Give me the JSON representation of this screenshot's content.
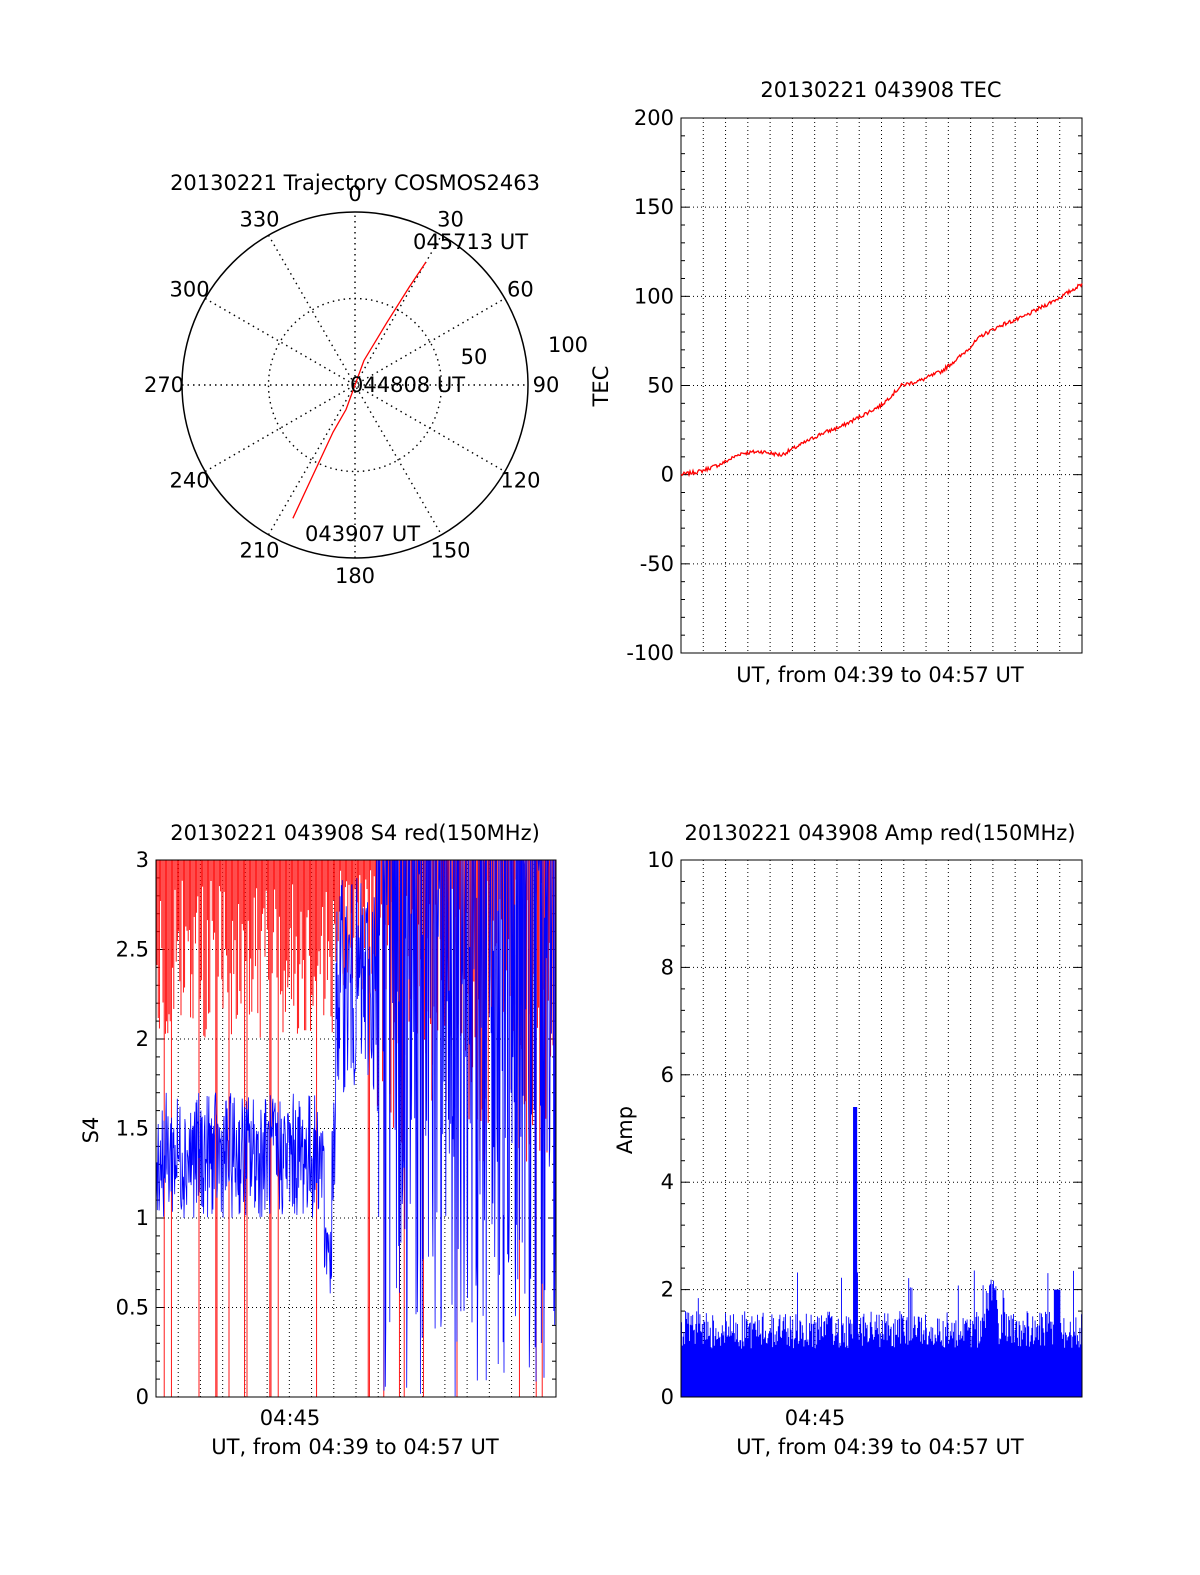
{
  "colors": {
    "red": "#ff0000",
    "blue": "#0000ff",
    "axis": "#000000"
  },
  "chart_data": [
    {
      "type": "polar-trajectory",
      "title": "20130221 Trajectory COSMOS2463",
      "angle_labels": [
        "0",
        "30",
        "60",
        "90",
        "120",
        "150",
        "180",
        "210",
        "240",
        "270",
        "300",
        "330"
      ],
      "radius_labels": [
        "50",
        "100"
      ],
      "rmax": 100,
      "path_points": [
        {
          "az": 205,
          "r": 85
        },
        {
          "az": 205,
          "r": 60
        },
        {
          "az": 205,
          "r": 30
        },
        {
          "az": 200,
          "r": 15
        },
        {
          "az": 0,
          "r": 0
        },
        {
          "az": 20,
          "r": 15
        },
        {
          "az": 27,
          "r": 40
        },
        {
          "az": 29,
          "r": 65
        },
        {
          "az": 30,
          "r": 82
        }
      ],
      "annotations": [
        {
          "text": "045713 UT",
          "az": 30,
          "r": 82
        },
        {
          "text": "044808 UT",
          "az": 0,
          "r": 0
        },
        {
          "text": "043907 UT",
          "az": 205,
          "r": 85
        }
      ]
    },
    {
      "type": "line",
      "title": "20130221 043908 TEC",
      "xlabel": "UT, from 04:39 to 04:57 UT",
      "ylabel": "TEC",
      "ylim": [
        -100,
        200
      ],
      "yticks": [
        "-100",
        "-50",
        "0",
        "50",
        "100",
        "150",
        "200"
      ],
      "grid": true,
      "series": [
        {
          "color": "red",
          "x": [
            0,
            0.05,
            0.1,
            0.15,
            0.2,
            0.25,
            0.3,
            0.35,
            0.4,
            0.45,
            0.5,
            0.55,
            0.6,
            0.65,
            0.7,
            0.75,
            0.8,
            0.85,
            0.9,
            0.95,
            1.0
          ],
          "y": [
            0,
            2,
            6,
            12,
            13,
            11,
            17,
            23,
            27,
            33,
            39,
            50,
            53,
            58,
            67,
            78,
            84,
            88,
            94,
            100,
            107
          ]
        }
      ]
    },
    {
      "type": "line",
      "title": "20130221 043908 S4 red(150MHz)",
      "xlabel": "UT, from 04:39 to 04:57 UT",
      "ylabel": "S4",
      "ylim": [
        0,
        3
      ],
      "yticks": [
        "0",
        "0.5",
        "1",
        "1.5",
        "2",
        "2.5",
        "3"
      ],
      "xticks": [
        "04:45"
      ],
      "grid": true,
      "series": [
        {
          "color": "red",
          "name": "red"
        },
        {
          "color": "blue",
          "name": "blue"
        }
      ]
    },
    {
      "type": "line",
      "title": "20130221 043908 Amp red(150MHz)",
      "xlabel": "UT, from 04:39 to 04:57 UT",
      "ylabel": "Amp",
      "ylim": [
        0,
        10
      ],
      "yticks": [
        "0",
        "2",
        "4",
        "6",
        "8",
        "10"
      ],
      "xticks": [
        "04:45"
      ],
      "grid": true,
      "series": [
        {
          "color": "blue",
          "name": "amp"
        }
      ]
    }
  ]
}
